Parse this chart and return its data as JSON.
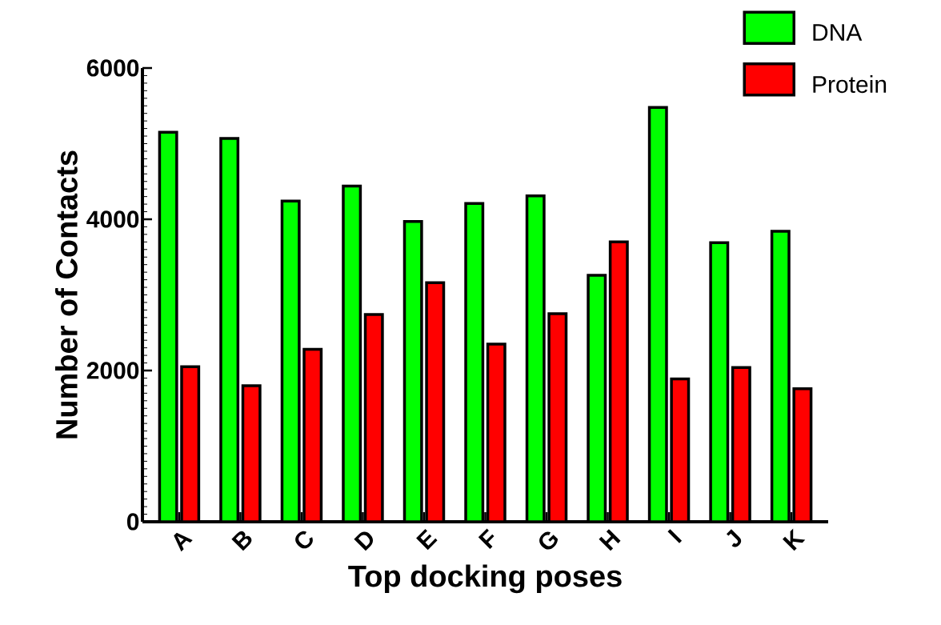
{
  "chart_data": {
    "type": "bar",
    "xlabel": "Top docking poses",
    "ylabel": "Number of Contacts",
    "categories": [
      "A",
      "B",
      "C",
      "D",
      "E",
      "F",
      "G",
      "H",
      "I",
      "J",
      "K"
    ],
    "series": [
      {
        "name": "DNA",
        "color": "#00ff00",
        "values": [
          5150,
          5070,
          4240,
          4440,
          3970,
          4210,
          4310,
          3260,
          5480,
          3690,
          3840
        ]
      },
      {
        "name": "Protein",
        "color": "#ff0000",
        "values": [
          2050,
          1800,
          2280,
          2740,
          3160,
          2350,
          2750,
          3700,
          1890,
          2040,
          1760
        ]
      }
    ],
    "ylim": [
      0,
      6000
    ],
    "yticks": [
      0,
      2000,
      4000,
      6000
    ],
    "grid": false,
    "legend": "top right"
  }
}
